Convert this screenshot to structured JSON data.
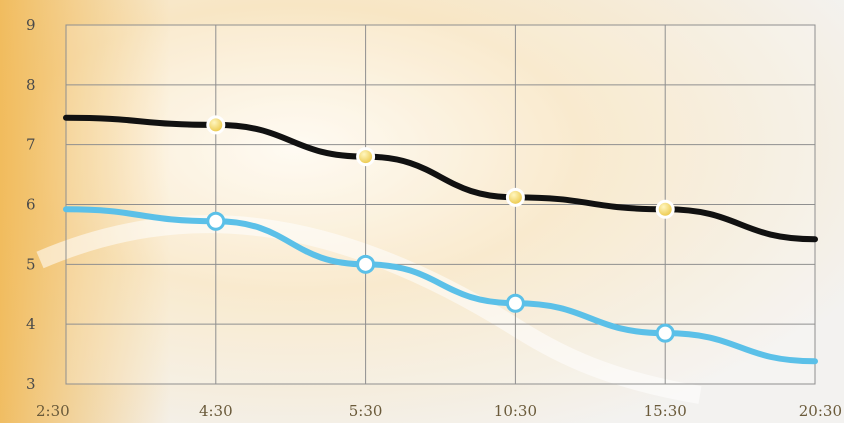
{
  "chart_data": {
    "type": "line",
    "categories": [
      "2:30",
      "4:30",
      "5:30",
      "10:30",
      "15:30",
      "20:30"
    ],
    "ylim": [
      3,
      9
    ],
    "yticks": [
      "3",
      "4",
      "5",
      "6",
      "7",
      "8",
      "9"
    ],
    "grid": true,
    "series": [
      {
        "color": "#111111",
        "marker_fill": "#f1d24a",
        "markers": [
          false,
          true,
          true,
          true,
          true,
          false
        ],
        "values": [
          7.45,
          7.33,
          6.8,
          6.12,
          5.92,
          5.42
        ]
      },
      {
        "color": "#5bc0e8",
        "marker_fill": "#ffffff",
        "markers": [
          false,
          true,
          true,
          true,
          true,
          false
        ],
        "values": [
          5.92,
          5.72,
          5.0,
          4.35,
          3.85,
          3.38
        ]
      }
    ]
  }
}
